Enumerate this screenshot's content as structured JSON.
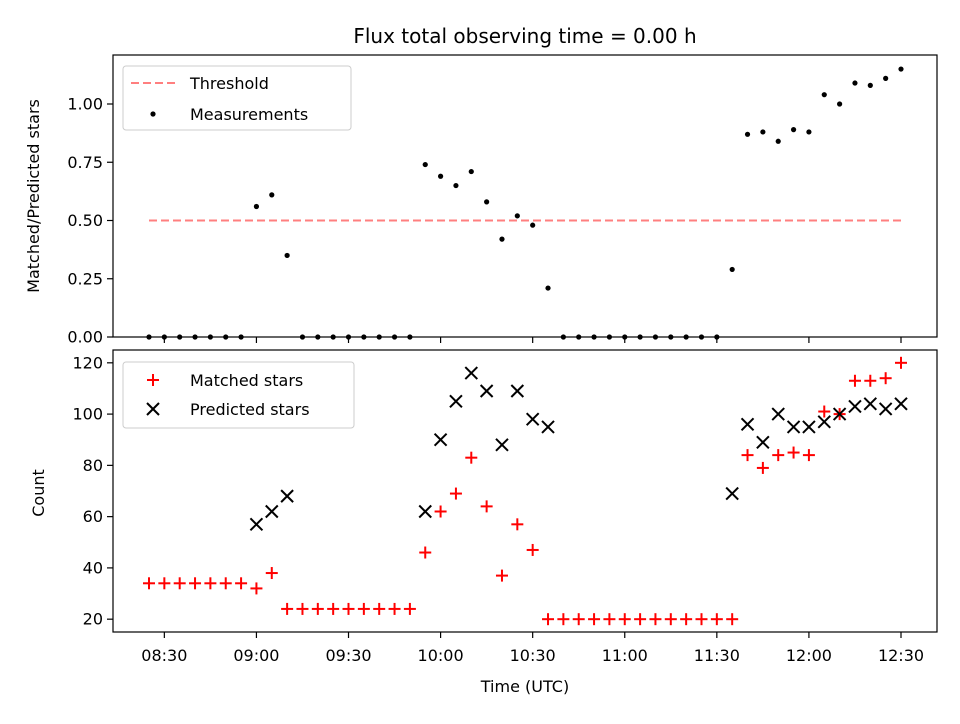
{
  "chart_data": [
    {
      "type": "scatter",
      "title": "Flux total observing time = 0.00 h",
      "xlabel": "",
      "ylabel": "Matched/Predicted stars",
      "ylim": [
        0,
        1.2
      ],
      "yticks": [
        "0.00",
        "0.25",
        "0.50",
        "0.75",
        "1.00"
      ],
      "legend_position": "top-left",
      "grid": false,
      "series": [
        {
          "name": "Threshold",
          "kind": "dashed-line",
          "color": "#ff7f7f",
          "x": [
            "08:25",
            "12:30"
          ],
          "y": [
            0.5,
            0.5
          ]
        },
        {
          "name": "Measurements",
          "kind": "dots",
          "color": "#000000",
          "x": [
            "08:25",
            "08:30",
            "08:35",
            "08:40",
            "08:45",
            "08:50",
            "08:55",
            "09:00",
            "09:05",
            "09:10",
            "09:15",
            "09:20",
            "09:25",
            "09:30",
            "09:35",
            "09:40",
            "09:45",
            "09:50",
            "09:55",
            "10:00",
            "10:05",
            "10:10",
            "10:15",
            "10:20",
            "10:25",
            "10:30",
            "10:35",
            "10:40",
            "10:45",
            "10:50",
            "10:55",
            "11:00",
            "11:05",
            "11:10",
            "11:15",
            "11:20",
            "11:25",
            "11:30",
            "11:35",
            "11:40",
            "11:45",
            "11:50",
            "11:55",
            "12:00",
            "12:05",
            "12:10",
            "12:15",
            "12:20",
            "12:25",
            "12:30"
          ],
          "y": [
            0,
            0,
            0,
            0,
            0,
            0,
            0,
            0.56,
            0.61,
            0.35,
            0,
            0,
            0,
            0,
            0,
            0,
            0,
            0,
            0.74,
            0.69,
            0.65,
            0.71,
            0.58,
            0.42,
            0.52,
            0.48,
            0.21,
            0,
            0,
            0,
            0,
            0,
            0,
            0,
            0,
            0,
            0,
            0,
            0.29,
            0.87,
            0.88,
            0.84,
            0.89,
            0.88,
            1.04,
            1.0,
            1.09,
            1.08,
            1.11,
            1.15
          ]
        }
      ]
    },
    {
      "type": "scatter",
      "title": "",
      "xlabel": "Time (UTC)",
      "ylabel": "Count",
      "ylim": [
        15,
        125
      ],
      "yticks": [
        "20",
        "40",
        "60",
        "80",
        "100",
        "120"
      ],
      "xticks": [
        "08:30",
        "09:00",
        "09:30",
        "10:00",
        "10:30",
        "11:00",
        "11:30",
        "12:00",
        "12:30"
      ],
      "legend_position": "top-left",
      "grid": false,
      "series": [
        {
          "name": "Matched stars",
          "marker": "plus",
          "color": "#ff0000",
          "x": [
            "08:25",
            "08:30",
            "08:35",
            "08:40",
            "08:45",
            "08:50",
            "08:55",
            "09:00",
            "09:05",
            "09:10",
            "09:15",
            "09:20",
            "09:25",
            "09:30",
            "09:35",
            "09:40",
            "09:45",
            "09:50",
            "09:55",
            "10:00",
            "10:05",
            "10:10",
            "10:15",
            "10:20",
            "10:25",
            "10:30",
            "10:35",
            "10:40",
            "10:45",
            "10:50",
            "10:55",
            "11:00",
            "11:05",
            "11:10",
            "11:15",
            "11:20",
            "11:25",
            "11:30",
            "11:35",
            "11:40",
            "11:45",
            "11:50",
            "11:55",
            "12:00",
            "12:05",
            "12:10",
            "12:15",
            "12:20",
            "12:25",
            "12:30"
          ],
          "y": [
            34,
            34,
            34,
            34,
            34,
            34,
            34,
            32,
            38,
            24,
            24,
            24,
            24,
            24,
            24,
            24,
            24,
            24,
            46,
            62,
            69,
            83,
            64,
            37,
            57,
            47,
            20,
            20,
            20,
            20,
            20,
            20,
            20,
            20,
            20,
            20,
            20,
            20,
            20,
            84,
            79,
            84,
            85,
            84,
            101,
            100,
            113,
            113,
            114,
            120
          ]
        },
        {
          "name": "Predicted stars",
          "marker": "x",
          "color": "#000000",
          "x": [
            "09:00",
            "09:05",
            "09:10",
            "09:55",
            "10:00",
            "10:05",
            "10:10",
            "10:15",
            "10:20",
            "10:25",
            "10:30",
            "10:35",
            "11:35",
            "11:40",
            "11:45",
            "11:50",
            "11:55",
            "12:00",
            "12:05",
            "12:10",
            "12:15",
            "12:20",
            "12:25",
            "12:30"
          ],
          "y": [
            57,
            62,
            68,
            62,
            90,
            105,
            116,
            109,
            88,
            109,
            98,
            95,
            69,
            96,
            89,
            100,
            95,
            95,
            97,
            100,
            103,
            104,
            102,
            104
          ]
        }
      ]
    }
  ]
}
